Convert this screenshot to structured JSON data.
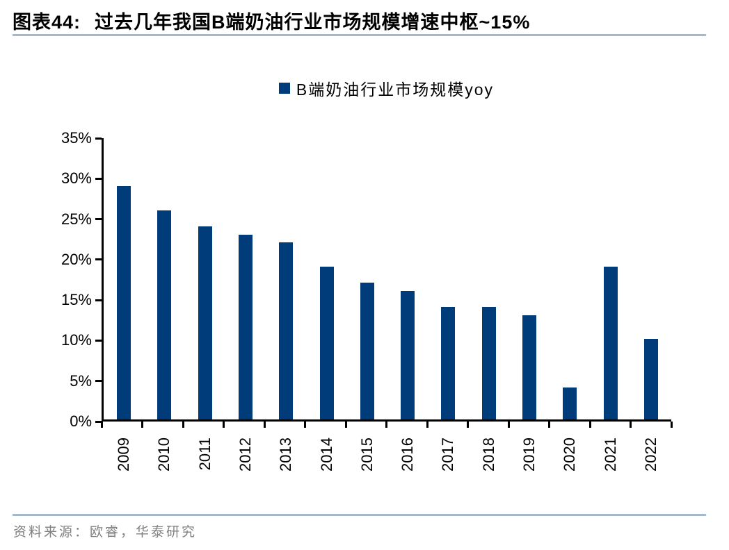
{
  "header": {
    "tag": "图表44:",
    "title": "过去几年我国B端奶油行业市场规模增速中枢~15%"
  },
  "legend": {
    "label": "B端奶油行业市场规模yoy"
  },
  "chart_data": {
    "type": "bar",
    "title": "过去几年我国B端奶油行业市场规模增速中枢~15%",
    "categories": [
      "2009",
      "2010",
      "2011",
      "2012",
      "2013",
      "2014",
      "2015",
      "2016",
      "2017",
      "2018",
      "2019",
      "2020",
      "2021",
      "2022"
    ],
    "values": [
      29,
      26,
      24,
      23,
      22,
      19,
      17,
      16,
      14,
      14,
      13,
      4,
      19,
      10
    ],
    "series_name": "B端奶油行业市场规模yoy",
    "xlabel": "",
    "ylabel": "",
    "ylim": [
      0,
      35
    ],
    "ytick_step": 5,
    "ytick_labels": [
      "0%",
      "5%",
      "10%",
      "15%",
      "20%",
      "25%",
      "30%",
      "35%"
    ],
    "grid": false,
    "legend_position": "top",
    "bar_color": "#003B7A"
  },
  "footer": {
    "source": "资料来源：欧睿，华泰研究"
  },
  "colors": {
    "bar": "#003B7A",
    "divider": "#A6B8CC",
    "axis": "#000000",
    "source_text": "#808080",
    "title_text": "#000000"
  }
}
